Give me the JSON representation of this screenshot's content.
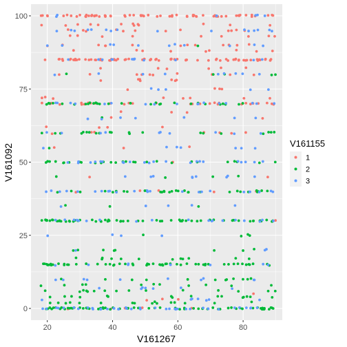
{
  "chart_data": {
    "type": "scatter",
    "xlabel": "V161267",
    "ylabel": "V161092",
    "xlim": [
      15,
      92
    ],
    "ylim": [
      -4,
      104
    ],
    "x_ticks": [
      20,
      40,
      60,
      80
    ],
    "y_ticks": [
      0,
      25,
      50,
      75,
      100
    ],
    "grid": true,
    "legend": {
      "title": "V161155",
      "placement": "right"
    },
    "x_domain": [
      18,
      90
    ],
    "series": [
      {
        "name": "1",
        "color": "#F8766D",
        "y_values": [
          100,
          97,
          95,
          93,
          90,
          88,
          85,
          82,
          80,
          78,
          75,
          72,
          70,
          67,
          65,
          62,
          60,
          55,
          50,
          45,
          40,
          35,
          30,
          15,
          5,
          3,
          0
        ],
        "y_weights": [
          62,
          12,
          10,
          10,
          8,
          8,
          60,
          8,
          7,
          6,
          6,
          5,
          22,
          4,
          4,
          3,
          4,
          2,
          3,
          1,
          3,
          1,
          2,
          1,
          1,
          1,
          3
        ],
        "point_count": 300,
        "jitter": 0.3
      },
      {
        "name": "2",
        "color": "#00BA38",
        "y_values": [
          0,
          2,
          4,
          6,
          8,
          10,
          15,
          17,
          20,
          25,
          30,
          35,
          40,
          45,
          50,
          55,
          60,
          65,
          70,
          75,
          80,
          85,
          90
        ],
        "y_weights": [
          40,
          8,
          8,
          6,
          5,
          5,
          28,
          4,
          3,
          2,
          26,
          2,
          20,
          2,
          14,
          1,
          12,
          1,
          10,
          1,
          3,
          1,
          2
        ],
        "point_count": 400,
        "jitter": 0.3
      },
      {
        "name": "3",
        "color": "#619CFF",
        "y_values": [
          0,
          3,
          7,
          10,
          15,
          20,
          25,
          30,
          35,
          40,
          45,
          50,
          55,
          60,
          65,
          70,
          75,
          80,
          85,
          90,
          95,
          100
        ],
        "y_weights": [
          30,
          4,
          5,
          4,
          8,
          3,
          3,
          10,
          4,
          14,
          6,
          16,
          5,
          12,
          5,
          12,
          6,
          8,
          10,
          6,
          6,
          6
        ],
        "point_count": 260,
        "jitter": 0.3
      }
    ]
  },
  "colors": {
    "panel_background": "#EBEBEB",
    "grid_major": "#FFFFFF",
    "tick_color": "#333333"
  }
}
